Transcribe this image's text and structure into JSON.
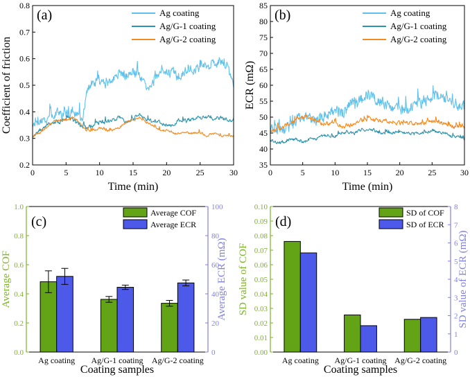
{
  "colors": {
    "ag": "#5fc0ec",
    "ag_g1": "#2b93ad",
    "ag_g2": "#f58a1f",
    "cof_bar": "#63a417",
    "ecr_bar": "#4d59e8",
    "cof_axis": "#7cb229",
    "ecr_axis": "#7f7fe6",
    "black": "#000000"
  },
  "chart_data": [
    {
      "id": "a",
      "panel_label": "(a)",
      "type": "line",
      "xlabel": "Time (min)",
      "ylabel": "Coefficient of friction",
      "xlim": [
        0,
        30
      ],
      "ylim": [
        0.2,
        0.8
      ],
      "xticks": [
        0,
        5,
        10,
        15,
        20,
        25,
        30
      ],
      "yticks": [
        0.2,
        0.3,
        0.4,
        0.5,
        0.6,
        0.7,
        0.8
      ],
      "ytick_labels": [
        "0.2",
        "0.3",
        "0.4",
        "0.5",
        "0.6",
        "0.7",
        "0.8"
      ],
      "legend": [
        "Ag coating",
        "Ag/G-1 coating",
        "Ag/G-2 coating"
      ],
      "series": [
        {
          "name": "Ag coating",
          "color_key": "ag",
          "x": [
            0,
            1,
            2,
            3,
            4,
            5,
            6,
            7,
            7.5,
            8,
            8.5,
            9,
            10,
            11,
            12,
            13,
            14,
            15,
            16,
            17,
            18,
            19,
            20,
            21,
            22,
            23,
            24,
            25,
            26,
            27,
            28,
            29,
            30
          ],
          "y": [
            0.35,
            0.36,
            0.37,
            0.39,
            0.4,
            0.39,
            0.4,
            0.38,
            0.36,
            0.47,
            0.49,
            0.5,
            0.51,
            0.5,
            0.52,
            0.55,
            0.53,
            0.56,
            0.53,
            0.5,
            0.51,
            0.54,
            0.55,
            0.55,
            0.53,
            0.56,
            0.55,
            0.57,
            0.57,
            0.58,
            0.59,
            0.57,
            0.5
          ],
          "spike_amplitude": 0.045
        },
        {
          "name": "Ag/G-1 coating",
          "color_key": "ag_g1",
          "x": [
            0,
            1,
            2,
            3,
            4,
            5,
            6,
            7,
            8,
            9,
            10,
            11,
            12,
            13,
            14,
            15,
            16,
            17,
            18,
            19,
            20,
            21,
            22,
            23,
            24,
            25,
            26,
            27,
            28,
            29,
            30
          ],
          "y": [
            0.31,
            0.33,
            0.35,
            0.36,
            0.36,
            0.37,
            0.37,
            0.35,
            0.34,
            0.35,
            0.36,
            0.36,
            0.37,
            0.38,
            0.36,
            0.37,
            0.39,
            0.37,
            0.37,
            0.36,
            0.35,
            0.35,
            0.37,
            0.37,
            0.37,
            0.38,
            0.38,
            0.37,
            0.38,
            0.37,
            0.36
          ],
          "spike_amplitude": 0.02
        },
        {
          "name": "Ag/G-2 coating",
          "color_key": "ag_g2",
          "x": [
            0,
            1,
            2,
            3,
            4,
            5,
            6,
            7,
            8,
            9,
            10,
            11,
            12,
            13,
            14,
            15,
            16,
            17,
            18,
            19,
            20,
            21,
            22,
            23,
            24,
            25,
            26,
            27,
            28,
            29,
            30
          ],
          "y": [
            0.31,
            0.32,
            0.34,
            0.36,
            0.37,
            0.37,
            0.38,
            0.36,
            0.33,
            0.33,
            0.34,
            0.33,
            0.33,
            0.34,
            0.36,
            0.37,
            0.38,
            0.36,
            0.35,
            0.33,
            0.33,
            0.32,
            0.32,
            0.32,
            0.32,
            0.32,
            0.31,
            0.32,
            0.31,
            0.31,
            0.31
          ],
          "spike_amplitude": 0.012
        }
      ]
    },
    {
      "id": "b",
      "panel_label": "(b)",
      "type": "line",
      "xlabel": "Time (min)",
      "ylabel": "ECR (mΩ)",
      "xlim": [
        0,
        30
      ],
      "ylim": [
        35,
        85
      ],
      "xticks": [
        0,
        5,
        10,
        15,
        20,
        25,
        30
      ],
      "yticks": [
        35,
        40,
        45,
        50,
        55,
        60,
        65,
        70,
        75,
        80,
        85
      ],
      "ytick_labels": [
        "35",
        "40",
        "45",
        "50",
        "55",
        "60",
        "65",
        "70",
        "75",
        "80",
        "85"
      ],
      "legend": [
        "Ag coating",
        "Ag/G-1 coating",
        "Ag/G-2 coating"
      ],
      "series": [
        {
          "name": "Ag coating",
          "color_key": "ag",
          "x": [
            0,
            1,
            2,
            3,
            4,
            5,
            6,
            7,
            8,
            9,
            10,
            11,
            12,
            13,
            14,
            15,
            16,
            17,
            18,
            19,
            20,
            21,
            22,
            23,
            24,
            25,
            26,
            27,
            28,
            29,
            30
          ],
          "y": [
            47,
            46,
            46,
            47,
            49,
            50,
            50,
            49,
            50,
            51,
            52,
            51,
            53,
            55,
            56,
            57,
            56,
            55,
            54,
            53,
            53,
            52,
            53,
            54,
            55,
            56,
            57,
            56,
            55,
            54,
            53
          ],
          "spike_amplitude": 5
        },
        {
          "name": "Ag/G-1 coating",
          "color_key": "ag_g1",
          "x": [
            0,
            1,
            2,
            3,
            4,
            5,
            6,
            7,
            8,
            9,
            10,
            11,
            12,
            13,
            14,
            15,
            16,
            17,
            18,
            19,
            20,
            21,
            22,
            23,
            24,
            25,
            26,
            27,
            28,
            29,
            30
          ],
          "y": [
            43,
            42,
            42,
            43,
            43,
            42,
            43,
            43,
            44,
            44,
            44,
            45,
            45,
            45,
            46,
            46,
            46,
            45,
            45,
            45,
            45,
            45,
            45,
            45,
            45,
            46,
            45,
            45,
            44,
            44,
            43
          ],
          "spike_amplitude": 1.3
        },
        {
          "name": "Ag/G-2 coating",
          "color_key": "ag_g2",
          "x": [
            0,
            1,
            2,
            3,
            4,
            5,
            6,
            7,
            8,
            9,
            10,
            11,
            12,
            13,
            14,
            15,
            16,
            17,
            18,
            19,
            20,
            21,
            22,
            23,
            24,
            25,
            26,
            27,
            28,
            29,
            30
          ],
          "y": [
            46,
            46,
            47,
            48,
            49,
            50,
            50,
            49,
            48,
            48,
            48,
            47,
            47,
            48,
            49,
            50,
            49,
            49,
            49,
            48,
            48,
            48,
            48,
            48,
            48,
            49,
            48,
            48,
            47,
            47,
            47
          ],
          "spike_amplitude": 1.8
        }
      ]
    },
    {
      "id": "c",
      "panel_label": "(c)",
      "type": "bar",
      "xlabel": "Coating samples",
      "categories": [
        "Ag coating",
        "Ag/G-1 coating",
        "Ag/G-2 coating"
      ],
      "ylabel_left": "Average COF",
      "ylabel_right": "Average ECR (mΩ)",
      "ylim_left": [
        0.0,
        1.0
      ],
      "ylim_right": [
        0,
        100
      ],
      "yticks_left": [
        "0.0",
        "0.2",
        "0.4",
        "0.6",
        "0.8",
        "1.0"
      ],
      "yticks_right": [
        "0",
        "20",
        "40",
        "60",
        "80",
        "100"
      ],
      "series": [
        {
          "name": "Average COF",
          "axis": "left",
          "color_key": "cof_bar",
          "values": [
            0.483,
            0.362,
            0.335
          ],
          "errors": [
            0.075,
            0.02,
            0.02
          ]
        },
        {
          "name": "Average ECR",
          "axis": "right",
          "color_key": "ecr_bar",
          "values": [
            52,
            44.5,
            47.5
          ],
          "errors": [
            5.5,
            1.5,
            2
          ]
        }
      ]
    },
    {
      "id": "d",
      "panel_label": "(d)",
      "type": "bar",
      "xlabel": "Coating samples",
      "categories": [
        "Ag coating",
        "Ag/G-1 coating",
        "Ag/G-2 coating"
      ],
      "ylabel_left": "SD value of COF",
      "ylabel_right": "SD value of ECR (mΩ)",
      "ylim_left": [
        0.0,
        0.1
      ],
      "ylim_right": [
        0,
        8
      ],
      "yticks_left": [
        "0.00",
        "0.01",
        "0.02",
        "0.03",
        "0.04",
        "0.05",
        "0.06",
        "0.07",
        "0.08",
        "0.09",
        "0.10"
      ],
      "yticks_right": [
        "0",
        "1",
        "2",
        "3",
        "4",
        "5",
        "6",
        "7",
        "8"
      ],
      "series": [
        {
          "name": "SD of COF",
          "axis": "left",
          "color_key": "cof_bar",
          "values": [
            0.076,
            0.0255,
            0.0225
          ]
        },
        {
          "name": "SD of ECR",
          "axis": "right",
          "color_key": "ecr_bar",
          "values": [
            5.45,
            1.45,
            1.9
          ]
        }
      ]
    }
  ]
}
